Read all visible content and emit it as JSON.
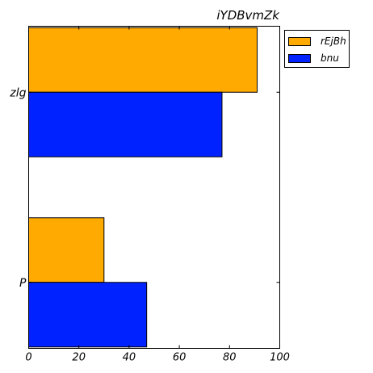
{
  "chart_data": {
    "type": "bar",
    "orientation": "horizontal",
    "title": "iYDBvmZk",
    "categories": [
      "P",
      "zlg"
    ],
    "series": [
      {
        "name": "rEjBh",
        "color": "#ffaa00",
        "values": [
          30,
          91
        ]
      },
      {
        "name": "bnu",
        "color": "#0022ff",
        "values": [
          47,
          77
        ]
      }
    ],
    "xlim": [
      0,
      100
    ],
    "xticks": [
      "0",
      "20",
      "40",
      "60",
      "80",
      "100"
    ],
    "grid": false,
    "legend_position": "outside-top-right"
  }
}
